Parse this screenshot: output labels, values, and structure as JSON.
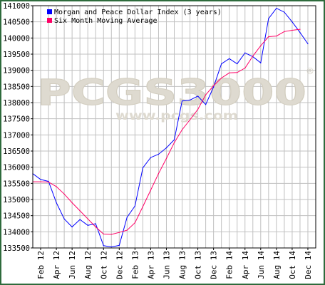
{
  "chart_data": {
    "type": "line",
    "title": "",
    "xlabel": "",
    "ylabel": "",
    "ylim": [
      133500,
      141000
    ],
    "y_ticks": [
      133500,
      134000,
      134500,
      135000,
      135500,
      136000,
      136500,
      137000,
      137500,
      138000,
      138500,
      139000,
      139500,
      140000,
      140500,
      141000
    ],
    "x_tick_labels": [
      "Feb 12",
      "Apr 12",
      "Jun 12",
      "Aug 12",
      "Oct 12",
      "Dec 12",
      "Feb 13",
      "Apr 13",
      "Jun 13",
      "Aug 13",
      "Oct 13",
      "Dec 13",
      "Feb 14",
      "Apr 14",
      "Jun 14",
      "Aug 14",
      "Oct 14",
      "Dec 14"
    ],
    "x_months": [
      "Jan 12",
      "Feb 12",
      "Mar 12",
      "Apr 12",
      "May 12",
      "Jun 12",
      "Jul 12",
      "Aug 12",
      "Sep 12",
      "Oct 12",
      "Nov 12",
      "Dec 12",
      "Jan 13",
      "Feb 13",
      "Mar 13",
      "Apr 13",
      "May 13",
      "Jun 13",
      "Jul 13",
      "Aug 13",
      "Sep 13",
      "Oct 13",
      "Nov 13",
      "Dec 13",
      "Jan 14",
      "Feb 14",
      "Mar 14",
      "Apr 14",
      "May 14",
      "Jun 14",
      "Jul 14",
      "Aug 14",
      "Sep 14",
      "Oct 14",
      "Nov 14",
      "Dec 14",
      "Jan 15"
    ],
    "grid": true,
    "legend_position": "top-left",
    "series": [
      {
        "name": "Morgan and Peace Dollar Index (3 years)",
        "color": "#0000ff",
        "values": [
          135800,
          135620,
          135560,
          134900,
          134400,
          134150,
          134380,
          134200,
          134250,
          133570,
          133530,
          133580,
          134450,
          134800,
          135980,
          136300,
          136400,
          136600,
          136850,
          138050,
          138080,
          138200,
          137940,
          138480,
          139200,
          139360,
          139200,
          139540,
          139420,
          139230,
          140600,
          140920,
          140800,
          140500,
          140170,
          139820,
          null
        ]
      },
      {
        "name": "Six Month Moving Average",
        "color": "#ff0066",
        "values": [
          135550,
          135550,
          135540,
          135400,
          135170,
          134900,
          134650,
          134400,
          134150,
          133930,
          133920,
          133980,
          134050,
          134280,
          134780,
          135290,
          135800,
          136270,
          136760,
          137160,
          137470,
          137790,
          138240,
          138520,
          138760,
          138920,
          138930,
          139070,
          139440,
          139760,
          140040,
          140060,
          140200,
          140240,
          140270,
          null,
          null
        ]
      }
    ]
  },
  "watermark": {
    "brand": "PCGS3000",
    "url": "www.pcgs.com",
    "registered": "®"
  },
  "colors": {
    "frame": "#2e6b3c",
    "grid": "#c0c0c0",
    "axis": "#000000",
    "watermark": "#dedad0"
  }
}
